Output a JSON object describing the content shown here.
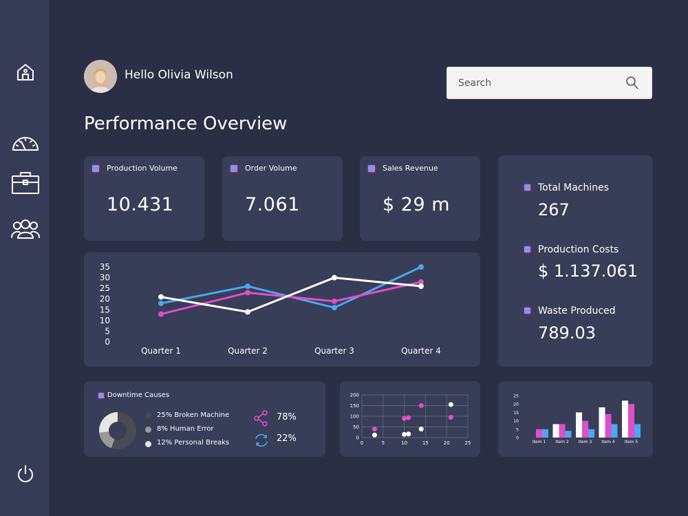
{
  "header": {
    "greeting": "Hello Olivia Wilson",
    "search_placeholder": "Search",
    "page_title": "Performance Overview"
  },
  "sidebar": {
    "items": [
      {
        "icon": "home-icon"
      },
      {
        "icon": "speedometer-icon"
      },
      {
        "icon": "briefcase-icon"
      },
      {
        "icon": "team-icon"
      }
    ],
    "footer_icon": "power-icon"
  },
  "kpis": [
    {
      "label": "Production Volume",
      "value": "10.431"
    },
    {
      "label": "Order Volume",
      "value": "7.061"
    },
    {
      "label": "Sales Revenue",
      "value": "$ 29 m"
    }
  ],
  "side_stats": [
    {
      "label": "Total Machines",
      "value": "267"
    },
    {
      "label": "Production Costs",
      "value": "$ 1.137.061"
    },
    {
      "label": "Waste Produced",
      "value": "789.03"
    }
  ],
  "downtime": {
    "title": "Downtime Causes",
    "legend": [
      {
        "label": "25% Broken Machine",
        "color": "#4a4a52"
      },
      {
        "label": "8% Human Error",
        "color": "#9a9a9a"
      },
      {
        "label": "12% Personal Breaks",
        "color": "#e6e6e6"
      }
    ],
    "stats": [
      {
        "icon": "share-icon",
        "value": "78%"
      },
      {
        "icon": "refresh-icon",
        "value": "22%"
      }
    ]
  },
  "chart_data": [
    {
      "type": "line",
      "categories": [
        "Quarter 1",
        "Quarter 2",
        "Quarter 3",
        "Quarter 4"
      ],
      "yticks": [
        "0",
        "5",
        "10",
        "15",
        "20",
        "25",
        "30",
        "35"
      ],
      "ylim": [
        0,
        35
      ],
      "series": [
        {
          "color": "#4da6ef",
          "values": [
            18,
            26,
            16,
            35
          ]
        },
        {
          "color": "#e04ecb",
          "values": [
            13,
            23,
            19,
            28
          ]
        },
        {
          "color": "#ffffff",
          "values": [
            21,
            14,
            30,
            26
          ]
        }
      ]
    },
    {
      "type": "pie",
      "values": [
        25,
        8,
        12
      ],
      "colors": [
        "#4a4a52",
        "#9a9a9a",
        "#e6e6e6"
      ]
    },
    {
      "type": "scatter",
      "xticks": [
        "0",
        "5",
        "10",
        "15",
        "20",
        "25"
      ],
      "yticks": [
        "0",
        "50",
        "100",
        "150",
        "200"
      ],
      "xlim": [
        0,
        25
      ],
      "ylim": [
        0,
        200
      ],
      "series": [
        {
          "color": "#e04ecb",
          "points": [
            [
              3,
              40
            ],
            [
              10,
              90
            ],
            [
              11,
              93
            ],
            [
              14,
              150
            ],
            [
              21,
              95
            ]
          ]
        },
        {
          "color": "#ffffff",
          "points": [
            [
              3,
              12
            ],
            [
              10,
              15
            ],
            [
              11,
              17
            ],
            [
              14,
              40
            ],
            [
              21,
              155
            ]
          ]
        }
      ]
    },
    {
      "type": "bar",
      "categories": [
        "Item 1",
        "Item 2",
        "Item 3",
        "Item 4",
        "Item 5"
      ],
      "yticks": [
        "0",
        "5",
        "10",
        "15",
        "20",
        "25"
      ],
      "ylim": [
        0,
        25
      ],
      "series": [
        {
          "color": "#e04ecb",
          "values": [
            5,
            8,
            10,
            14,
            20
          ]
        },
        {
          "color": "#4da6ef",
          "values": [
            5,
            4,
            5,
            8,
            8
          ]
        },
        {
          "color": "#ffffff",
          "values": [
            0,
            8,
            15,
            18,
            22
          ]
        }
      ]
    }
  ]
}
